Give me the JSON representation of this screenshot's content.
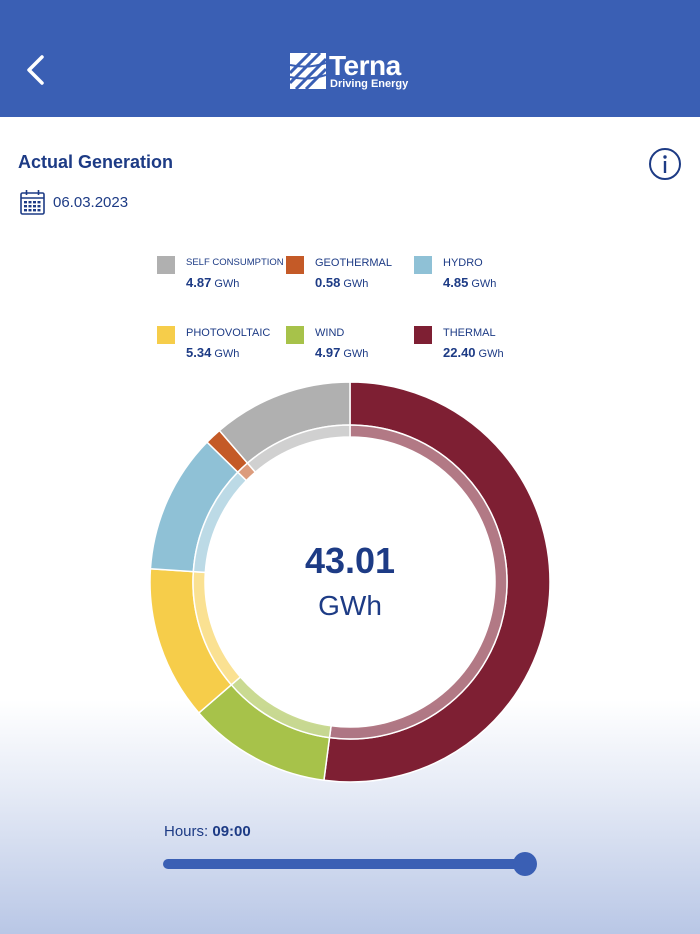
{
  "header": {
    "logo_name": "Terna",
    "logo_tagline": "Driving Energy",
    "back_icon": "chevron-left-icon",
    "background": "#3a5fb4"
  },
  "page": {
    "title": "Actual Generation",
    "date": "06.03.2023",
    "info_icon": "info-icon",
    "calendar_icon": "calendar-icon"
  },
  "legend": [
    {
      "label": "SELF CONSUMPTION",
      "value": "4.87",
      "unit": "GWh",
      "color": "#b0b0b0"
    },
    {
      "label": "GEOTHERMAL",
      "value": "0.58",
      "unit": "GWh",
      "color": "#c45a27"
    },
    {
      "label": "HYDRO",
      "value": "4.85",
      "unit": "GWh",
      "color": "#8fc1d6"
    },
    {
      "label": "PHOTOVOLTAIC",
      "value": "5.34",
      "unit": "GWh",
      "color": "#f6cd4a"
    },
    {
      "label": "WIND",
      "value": "4.97",
      "unit": "GWh",
      "color": "#a7c24a"
    },
    {
      "label": "THERMAL",
      "value": "22.40",
      "unit": "GWh",
      "color": "#7e1f33"
    }
  ],
  "total": {
    "value": "43.01",
    "unit": "GWh"
  },
  "hours": {
    "label": "Hours:",
    "value": "09:00",
    "fraction": 1.0
  },
  "chart_data": {
    "type": "pie",
    "style": "donut",
    "title": "Actual Generation",
    "center_label": "43.01 GWh",
    "start": "top",
    "direction": "clockwise",
    "slices": [
      {
        "name": "THERMAL",
        "value": 22.4,
        "color": "#7e1f33"
      },
      {
        "name": "WIND",
        "value": 4.97,
        "color": "#a7c24a"
      },
      {
        "name": "PHOTOVOLTAIC",
        "value": 5.34,
        "color": "#f6cd4a"
      },
      {
        "name": "HYDRO",
        "value": 4.85,
        "color": "#8fc1d6"
      },
      {
        "name": "GEOTHERMAL",
        "value": 0.58,
        "color": "#c45a27"
      },
      {
        "name": "SELF CONSUMPTION",
        "value": 4.87,
        "color": "#b0b0b0"
      }
    ]
  }
}
